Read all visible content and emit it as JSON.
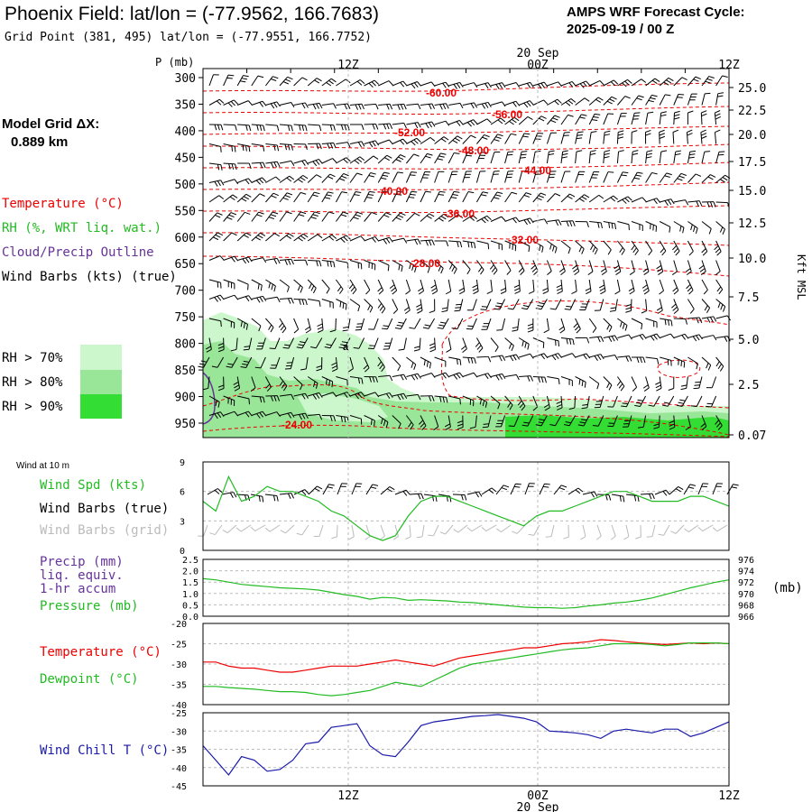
{
  "header": {
    "title": "Phoenix Field:  lat/lon = (-77.9562, 166.7683)",
    "grid_point": "Grid Point (381, 495) lat/lon = (-77.9551, 166.7752)",
    "cycle_label": "AMPS WRF Forecast Cycle:",
    "cycle_value": "2025-09-19 / 00  Z",
    "model_grid_label": "Model Grid ΔX:",
    "model_grid_value": "0.889 km"
  },
  "colors": {
    "temperature": "#ee0000",
    "rh": "#22bb22",
    "cloud": "#663399",
    "wind_chill": "#1a1aaa",
    "barb": "#000000",
    "barb_grid": "#bbbbbb",
    "rh70": "#ccf7cc",
    "rh80": "#99e699",
    "rh90": "#33dd33",
    "gridline": "#bbbbbb"
  },
  "legend": {
    "temperature": "Temperature (°C)",
    "rh": "RH (%, WRT liq. wat.)",
    "cloud": "Cloud/Precip Outline",
    "barbs": "Wind Barbs (kts) (true)",
    "rh_levels": [
      "RH > 70%",
      "RH > 80%",
      "RH > 90%"
    ]
  },
  "time_axis": {
    "top_labels": [
      "12Z",
      "00Z",
      "12Z"
    ],
    "date_label": "20 Sep",
    "bottom_labels": [
      "12Z",
      "00Z",
      "12Z"
    ]
  },
  "chart_data": [
    {
      "id": "cross_section",
      "type": "contour",
      "ylabel": "P (mb)",
      "y2label": "Kft MSL",
      "pressure_levels": [
        300,
        350,
        400,
        450,
        500,
        550,
        600,
        650,
        700,
        750,
        800,
        850,
        900,
        950
      ],
      "height_ticks": [
        "25.0",
        "22.5",
        "20.0",
        "17.5",
        "15.0",
        "12.5",
        "10.0",
        "7.5",
        "5.0",
        "2.5",
        "0.07"
      ],
      "temperature_labels": [
        "-60.00",
        "-56.00",
        "-52.00",
        "-48.00",
        "-44.00",
        "-40.00",
        "-36.00",
        "-32.00",
        "-28.00",
        "-24.00"
      ],
      "center_marker": "a"
    },
    {
      "id": "wind",
      "type": "line",
      "small_label": "Wind at 10 m",
      "series_labels": [
        "Wind Spd (kts)",
        "Wind Barbs (true)",
        "Wind Barbs (grid)"
      ],
      "yticks": [
        "9",
        "6",
        "3",
        "0"
      ],
      "ylim": [
        0,
        9
      ],
      "values": [
        5.0,
        4.0,
        7.5,
        5.0,
        5.5,
        6.5,
        6.0,
        6.0,
        5.5,
        5.0,
        4.0,
        3.5,
        2.5,
        1.5,
        1.0,
        1.5,
        3.5,
        5.0,
        5.5,
        5.5,
        5.0,
        4.5,
        4.0,
        3.5,
        3.0,
        2.5,
        3.5,
        4.0,
        4.0,
        4.5,
        5.0,
        5.5,
        6.0,
        6.0,
        5.5,
        5.0,
        5.0,
        5.0,
        5.5,
        5.5,
        5.0,
        4.5
      ]
    },
    {
      "id": "precip_pressure",
      "type": "line",
      "series_labels": [
        "Precip (mm)",
        "liq. equiv.",
        "1-hr accum",
        "Pressure (mb)"
      ],
      "yticks_left": [
        "2.5",
        "2.0",
        "1.5",
        "1.0",
        "0.5",
        "0.0"
      ],
      "yticks_right": [
        "976",
        "974",
        "972",
        "970",
        "968",
        "966"
      ],
      "right_unit": "(mb)",
      "ylim_right": [
        966,
        976
      ],
      "pressure": [
        972.6,
        972.4,
        972.0,
        971.6,
        971.4,
        971.2,
        971.0,
        970.9,
        970.8,
        970.6,
        970.2,
        969.8,
        969.5,
        969.0,
        969.3,
        969.2,
        968.8,
        968.9,
        968.8,
        968.7,
        968.5,
        968.4,
        968.2,
        968.0,
        967.8,
        967.6,
        967.5,
        967.5,
        967.4,
        967.5,
        967.8,
        968.0,
        968.3,
        968.5,
        968.8,
        969.2,
        969.8,
        970.4,
        971.0,
        971.5,
        972.0,
        972.4
      ]
    },
    {
      "id": "temp_dew",
      "type": "line",
      "series_labels": [
        "Temperature (°C)",
        "Dewpoint (°C)"
      ],
      "yticks": [
        "-20",
        "-25",
        "-30",
        "-35",
        "-40"
      ],
      "ylim": [
        -40,
        -20
      ],
      "temperature": [
        -29.5,
        -29.5,
        -30.5,
        -31.0,
        -31.0,
        -31.5,
        -32.0,
        -32.0,
        -31.5,
        -31.0,
        -30.5,
        -30.5,
        -30.5,
        -30.0,
        -29.5,
        -29.0,
        -29.5,
        -30.0,
        -30.5,
        -29.5,
        -28.5,
        -28.0,
        -27.5,
        -27.0,
        -26.5,
        -26.0,
        -26.0,
        -25.5,
        -25.0,
        -24.8,
        -24.5,
        -24.0,
        -24.2,
        -24.5,
        -24.8,
        -25.0,
        -25.2,
        -25.0,
        -24.8,
        -25.0,
        -24.8,
        -25.0
      ],
      "dewpoint": [
        -35.5,
        -35.5,
        -35.8,
        -36.0,
        -36.2,
        -36.5,
        -36.8,
        -36.8,
        -37.0,
        -37.5,
        -37.8,
        -37.5,
        -37.0,
        -36.5,
        -35.5,
        -34.5,
        -35.0,
        -35.5,
        -34.0,
        -32.5,
        -31.0,
        -30.0,
        -29.5,
        -29.0,
        -28.5,
        -28.0,
        -27.5,
        -27.0,
        -26.5,
        -26.2,
        -26.0,
        -25.5,
        -25.0,
        -25.0,
        -25.0,
        -25.2,
        -25.5,
        -25.2,
        -24.8,
        -24.8,
        -24.8,
        -25.0
      ]
    },
    {
      "id": "wind_chill",
      "type": "line",
      "series_labels": [
        "Wind Chill T (°C)"
      ],
      "yticks": [
        "-25",
        "-30",
        "-35",
        "-40",
        "-45"
      ],
      "ylim": [
        -45,
        -25
      ],
      "values": [
        -34.0,
        -38.0,
        -42.0,
        -37.0,
        -38.0,
        -41.0,
        -40.5,
        -38.0,
        -33.5,
        -33.0,
        -29.0,
        -28.5,
        -28.0,
        -34.0,
        -36.5,
        -37.0,
        -33.0,
        -28.5,
        -27.5,
        -27.0,
        -26.5,
        -26.0,
        -25.8,
        -25.5,
        -26.0,
        -26.5,
        -27.5,
        -30.0,
        -30.2,
        -30.5,
        -31.0,
        -32.0,
        -30.0,
        -29.5,
        -30.0,
        -30.5,
        -29.5,
        -29.5,
        -31.5,
        -30.5,
        -29.0,
        -27.5
      ]
    }
  ]
}
